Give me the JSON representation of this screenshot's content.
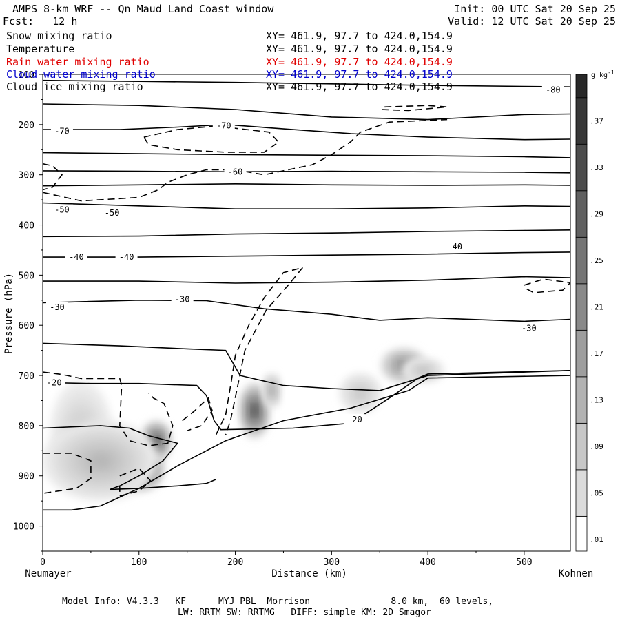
{
  "header": {
    "title": "AMPS 8-km WRF -- Qn Maud Land Coast window",
    "forecast": "Fcst:   12 h",
    "init": "Init: 00 UTC Sat 20 Sep 25",
    "valid": "Valid: 12 UTC Sat 20 Sep 25"
  },
  "fields": [
    {
      "label": "Snow mixing ratio",
      "xy": "XY= 461.9, 97.7 to 424.0,154.9",
      "color": "#000000"
    },
    {
      "label": "Temperature",
      "xy": "XY= 461.9, 97.7 to 424.0,154.9",
      "color": "#000000"
    },
    {
      "label": "Rain water mixing ratio",
      "xy": "XY= 461.9, 97.7 to 424.0,154.9",
      "color": "#e00000"
    },
    {
      "label": "Cloud water mixing ratio",
      "xy": "XY= 461.9, 97.7 to 424.0,154.9",
      "color": "#0000cc"
    },
    {
      "label": "Cloud ice mixing ratio",
      "xy": "XY= 461.9, 97.7 to 424.0,154.9",
      "color": "#000000"
    }
  ],
  "footer": {
    "line1": "Model Info: V4.3.3   KF      MYJ PBL  Morrison               8.0 km,  60 levels,",
    "line2": "LW: RRTM SW: RRTMG   DIFF: simple KM: 2D Smagor"
  },
  "chart_data": {
    "type": "contour",
    "xlabel": "Distance (km)",
    "ylabel": "Pressure (hPa)",
    "x_left_label": "Neumayer",
    "x_right_label": "Kohnen",
    "xlim": [
      0,
      548
    ],
    "ylim": [
      1050,
      100
    ],
    "x_ticks": [
      0,
      100,
      200,
      300,
      400,
      500
    ],
    "y_ticks": [
      100,
      200,
      300,
      400,
      500,
      600,
      700,
      800,
      900,
      1000
    ],
    "colorbar": {
      "unit": "g kg",
      "unit_exp": "-1",
      "range": [
        0,
        0.41
      ],
      "labels": [
        ".01",
        ".05",
        ".09",
        ".13",
        ".17",
        ".21",
        ".25",
        ".29",
        ".33",
        ".37"
      ],
      "boundaries": [
        0,
        0.03,
        0.07,
        0.11,
        0.15,
        0.19,
        0.23,
        0.27,
        0.31,
        0.35,
        0.39,
        0.41
      ]
    },
    "snow_blobs": [
      {
        "x": 102,
        "p": 885,
        "rx": 24,
        "rp": 45,
        "peak": 0.39
      },
      {
        "x": 118,
        "p": 830,
        "rx": 16,
        "rp": 40,
        "peak": 0.3
      },
      {
        "x": 40,
        "p": 810,
        "rx": 32,
        "rp": 100,
        "peak": 0.08
      },
      {
        "x": 60,
        "p": 870,
        "rx": 60,
        "rp": 80,
        "peak": 0.12
      },
      {
        "x": 220,
        "p": 770,
        "rx": 16,
        "rp": 55,
        "peak": 0.31
      },
      {
        "x": 238,
        "p": 730,
        "rx": 10,
        "rp": 35,
        "peak": 0.15
      },
      {
        "x": 375,
        "p": 680,
        "rx": 24,
        "rp": 35,
        "peak": 0.21
      },
      {
        "x": 330,
        "p": 735,
        "rx": 22,
        "rp": 40,
        "peak": 0.09
      },
      {
        "x": 395,
        "p": 690,
        "rx": 22,
        "rp": 25,
        "peak": 0.1
      }
    ],
    "temperature_isotherms": [
      {
        "label": "-80",
        "label_at": [
          530,
          131
        ],
        "points": [
          [
            0,
            112
          ],
          [
            100,
            114
          ],
          [
            200,
            116
          ],
          [
            300,
            119
          ],
          [
            400,
            122
          ],
          [
            500,
            124
          ],
          [
            548,
            125
          ]
        ]
      },
      {
        "label": "",
        "points": [
          [
            0,
            159
          ],
          [
            100,
            162
          ],
          [
            200,
            170
          ],
          [
            300,
            185
          ],
          [
            400,
            190
          ],
          [
            500,
            180
          ],
          [
            548,
            179
          ]
        ]
      },
      {
        "label": "-70",
        "label_at": [
          20,
          213
        ],
        "points": [
          [
            0,
            210
          ],
          [
            80,
            210
          ],
          [
            140,
            205
          ],
          [
            190,
            200
          ],
          [
            260,
            210
          ],
          [
            320,
            218
          ],
          [
            400,
            225
          ],
          [
            500,
            230
          ],
          [
            548,
            229
          ]
        ]
      },
      {
        "label": "-70",
        "label_at": [
          188,
          202
        ],
        "points": []
      },
      {
        "label": "",
        "points": [
          [
            0,
            256
          ],
          [
            100,
            258
          ],
          [
            200,
            260
          ],
          [
            300,
            261
          ],
          [
            400,
            262
          ],
          [
            500,
            264
          ],
          [
            548,
            266
          ]
        ]
      },
      {
        "label": "-60",
        "label_at": [
          200,
          294
        ],
        "points": [
          [
            0,
            292
          ],
          [
            100,
            293
          ],
          [
            200,
            294
          ],
          [
            300,
            293
          ],
          [
            400,
            294
          ],
          [
            500,
            295
          ],
          [
            548,
            296
          ]
        ]
      },
      {
        "label": "",
        "points": [
          [
            0,
            322
          ],
          [
            100,
            320
          ],
          [
            200,
            318
          ],
          [
            300,
            320
          ],
          [
            400,
            321
          ],
          [
            500,
            320
          ],
          [
            548,
            321
          ]
        ]
      },
      {
        "label": "-50",
        "label_at": [
          20,
          370
        ],
        "points": [
          [
            0,
            356
          ],
          [
            100,
            362
          ],
          [
            200,
            368
          ],
          [
            300,
            368
          ],
          [
            400,
            366
          ],
          [
            500,
            362
          ],
          [
            548,
            363
          ]
        ]
      },
      {
        "label": "-50",
        "label_at": [
          72,
          376
        ],
        "points": []
      },
      {
        "label": "",
        "points": [
          [
            0,
            423
          ],
          [
            100,
            422
          ],
          [
            200,
            418
          ],
          [
            300,
            416
          ],
          [
            400,
            413
          ],
          [
            500,
            411
          ],
          [
            548,
            410
          ]
        ]
      },
      {
        "label": "-40",
        "label_at": [
          35,
          464
        ],
        "points": [
          [
            0,
            464
          ],
          [
            100,
            464
          ],
          [
            200,
            462
          ],
          [
            300,
            460
          ],
          [
            400,
            458
          ],
          [
            500,
            455
          ],
          [
            548,
            454
          ]
        ]
      },
      {
        "label": "-40",
        "label_at": [
          87,
          464
        ],
        "points": []
      },
      {
        "label": "-40",
        "label_at": [
          428,
          443
        ],
        "points": []
      },
      {
        "label": "",
        "points": [
          [
            0,
            512
          ],
          [
            100,
            512
          ],
          [
            200,
            516
          ],
          [
            300,
            514
          ],
          [
            400,
            510
          ],
          [
            500,
            503
          ],
          [
            548,
            505
          ]
        ]
      },
      {
        "label": "-30",
        "label_at": [
          145,
          548
        ],
        "points": [
          [
            0,
            555
          ],
          [
            100,
            550
          ],
          [
            170,
            551
          ],
          [
            230,
            567
          ],
          [
            300,
            578
          ],
          [
            350,
            590
          ],
          [
            400,
            585
          ],
          [
            500,
            592
          ],
          [
            548,
            588
          ]
        ]
      },
      {
        "label": "-30",
        "label_at": [
          15,
          564
        ],
        "points": []
      },
      {
        "label": "-30",
        "label_at": [
          505,
          606
        ],
        "points": []
      },
      {
        "label": "",
        "points": [
          [
            0,
            636
          ],
          [
            80,
            641
          ],
          [
            150,
            647
          ],
          [
            190,
            650
          ],
          [
            205,
            700
          ],
          [
            250,
            720
          ],
          [
            300,
            726
          ],
          [
            350,
            730
          ],
          [
            400,
            700
          ],
          [
            548,
            690
          ]
        ]
      },
      {
        "label": "-20",
        "label_at": [
          12,
          714
        ],
        "points": [
          [
            0,
            714
          ],
          [
            50,
            716
          ],
          [
            100,
            716
          ],
          [
            160,
            720
          ],
          [
            170,
            740
          ],
          [
            178,
            790
          ],
          [
            185,
            808
          ],
          [
            260,
            805
          ],
          [
            320,
            795
          ],
          [
            360,
            745
          ],
          [
            390,
            705
          ],
          [
            400,
            697
          ],
          [
            548,
            690
          ]
        ]
      },
      {
        "label": "-20",
        "label_at": [
          324,
          788
        ],
        "points": []
      },
      {
        "label": "",
        "points": [
          [
            0,
            805
          ],
          [
            60,
            800
          ],
          [
            90,
            805
          ],
          [
            110,
            820
          ],
          [
            140,
            835
          ],
          [
            125,
            870
          ],
          [
            100,
            900
          ],
          [
            80,
            920
          ],
          [
            70,
            927
          ],
          [
            100,
            925
          ],
          [
            140,
            920
          ],
          [
            170,
            915
          ],
          [
            180,
            907
          ]
        ]
      }
    ],
    "terrain_pressure": [
      [
        0,
        968
      ],
      [
        30,
        968
      ],
      [
        60,
        960
      ],
      [
        100,
        925
      ],
      [
        140,
        880
      ],
      [
        190,
        830
      ],
      [
        250,
        790
      ],
      [
        320,
        765
      ],
      [
        380,
        730
      ],
      [
        400,
        705
      ],
      [
        548,
        700
      ]
    ],
    "cloud_ice_contours": [
      [
        [
          0,
          693
        ],
        [
          20,
          698
        ],
        [
          40,
          706
        ],
        [
          60,
          706
        ],
        [
          80,
          706
        ],
        [
          82,
          720
        ],
        [
          80,
          800
        ],
        [
          90,
          830
        ],
        [
          110,
          840
        ],
        [
          130,
          835
        ],
        [
          135,
          800
        ],
        [
          126,
          756
        ],
        [
          115,
          745
        ],
        [
          110,
          735
        ]
      ],
      [
        [
          0,
          855
        ],
        [
          30,
          855
        ],
        [
          50,
          870
        ],
        [
          50,
          905
        ],
        [
          35,
          925
        ],
        [
          10,
          932
        ],
        [
          0,
          935
        ]
      ],
      [
        [
          80,
          900
        ],
        [
          100,
          885
        ],
        [
          112,
          910
        ],
        [
          100,
          930
        ],
        [
          80,
          940
        ],
        [
          80,
          920
        ]
      ],
      [
        [
          180,
          818
        ],
        [
          190,
          778
        ],
        [
          196,
          710
        ],
        [
          200,
          660
        ],
        [
          214,
          600
        ],
        [
          230,
          545
        ],
        [
          250,
          495
        ],
        [
          270,
          485
        ],
        [
          255,
          520
        ],
        [
          232,
          570
        ],
        [
          210,
          650
        ],
        [
          202,
          725
        ],
        [
          195,
          790
        ],
        [
          190,
          818
        ]
      ],
      [
        [
          145,
          790
        ],
        [
          158,
          770
        ],
        [
          172,
          745
        ],
        [
          176,
          770
        ],
        [
          165,
          800
        ],
        [
          150,
          810
        ]
      ],
      [
        [
          0,
          335
        ],
        [
          40,
          352
        ],
        [
          100,
          345
        ],
        [
          120,
          330
        ],
        [
          130,
          315
        ],
        [
          150,
          300
        ],
        [
          170,
          290
        ],
        [
          200,
          290
        ],
        [
          230,
          300
        ],
        [
          280,
          280
        ],
        [
          300,
          260
        ],
        [
          320,
          234
        ],
        [
          330,
          215
        ],
        [
          360,
          195
        ],
        [
          420,
          190
        ]
      ],
      [
        [
          105,
          225
        ],
        [
          140,
          210
        ],
        [
          180,
          203
        ],
        [
          235,
          215
        ],
        [
          245,
          235
        ],
        [
          230,
          255
        ],
        [
          190,
          255
        ],
        [
          140,
          250
        ],
        [
          110,
          240
        ],
        [
          105,
          225
        ]
      ],
      [
        [
          355,
          165
        ],
        [
          400,
          162
        ],
        [
          420,
          165
        ],
        [
          380,
          172
        ],
        [
          350,
          170
        ]
      ],
      [
        [
          500,
          520
        ],
        [
          520,
          508
        ],
        [
          548,
          515
        ],
        [
          540,
          530
        ],
        [
          510,
          535
        ],
        [
          500,
          525
        ]
      ],
      [
        [
          0,
          278
        ],
        [
          10,
          282
        ],
        [
          20,
          300
        ],
        [
          10,
          325
        ],
        [
          0,
          330
        ]
      ]
    ]
  }
}
